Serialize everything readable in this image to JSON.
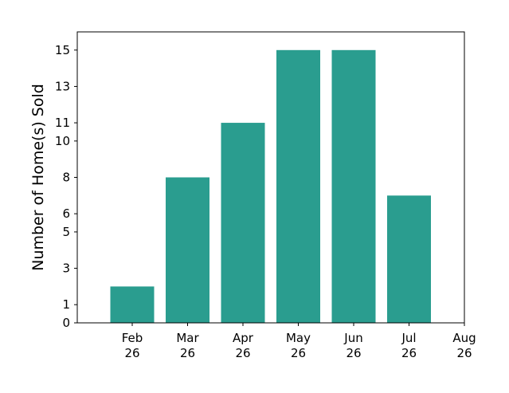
{
  "chart_data": {
    "type": "bar",
    "categories": [
      "Feb\n26",
      "Mar\n26",
      "Apr\n26",
      "May\n26",
      "Jun\n26",
      "Jul\n26"
    ],
    "values": [
      2,
      8,
      11,
      15,
      15,
      7
    ],
    "x_ticks": [
      "Feb\n26",
      "Mar\n26",
      "Apr\n26",
      "May\n26",
      "Jun\n26",
      "Jul\n26",
      "Aug\n26"
    ],
    "y_ticks": [
      0,
      1,
      3,
      5,
      6,
      8,
      10,
      11,
      13,
      15
    ],
    "ylim": [
      0,
      16
    ],
    "xlabel": "",
    "ylabel": "Number of Home(s) Sold",
    "title": "",
    "grid": false,
    "bar_color": "#2a9d8f"
  }
}
